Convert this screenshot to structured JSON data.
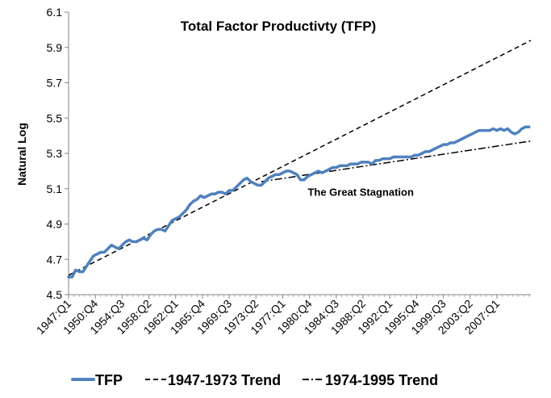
{
  "chart_data": {
    "type": "line",
    "title": "Total Factor Productivty (TFP)",
    "ylabel": "Natural Log",
    "xlabel": "",
    "ylim": [
      4.5,
      6.1
    ],
    "yticks": [
      "4.5",
      "4.7",
      "4.9",
      "5.1",
      "5.3",
      "5.5",
      "5.7",
      "5.9",
      "6.1"
    ],
    "ytick_values": [
      4.5,
      4.7,
      4.9,
      5.1,
      5.3,
      5.5,
      5.7,
      5.9,
      6.1
    ],
    "x_range": [
      1947.0,
      2011.75
    ],
    "xtick_labels": [
      "1947:Q1",
      "1950:Q4",
      "1954:Q3",
      "1958:Q2",
      "1962:Q1",
      "1965:Q4",
      "1969:Q3",
      "1973:Q2",
      "1977:Q1",
      "1980:Q4",
      "1984:Q3",
      "1988:Q2",
      "1992:Q1",
      "1995:Q4",
      "1999:Q3",
      "2003:Q2",
      "2007:Q1"
    ],
    "xtick_values": [
      1947.0,
      1950.75,
      1954.5,
      1958.25,
      1962.0,
      1965.75,
      1969.5,
      1973.25,
      1977.0,
      1980.75,
      1984.5,
      1988.25,
      1992.0,
      1995.75,
      1999.5,
      2003.25,
      2007.0
    ],
    "annotation": {
      "text": "The Great Stagnation",
      "x": 1980.5,
      "y": 5.06
    },
    "series": [
      {
        "name": "TFP",
        "style": "solid",
        "color": "#4F81BD",
        "x": [
          1947.0,
          1947.5,
          1948.0,
          1948.5,
          1949.0,
          1949.5,
          1950.0,
          1950.5,
          1951.0,
          1951.5,
          1952.0,
          1952.5,
          1953.0,
          1953.5,
          1954.0,
          1954.5,
          1955.0,
          1955.5,
          1956.0,
          1956.5,
          1957.0,
          1957.5,
          1958.0,
          1958.5,
          1959.0,
          1959.5,
          1960.0,
          1960.5,
          1961.0,
          1961.5,
          1962.0,
          1962.5,
          1963.0,
          1963.5,
          1964.0,
          1964.5,
          1965.0,
          1965.5,
          1966.0,
          1966.5,
          1967.0,
          1967.5,
          1968.0,
          1968.5,
          1969.0,
          1969.5,
          1970.0,
          1970.5,
          1971.0,
          1971.5,
          1972.0,
          1972.5,
          1973.0,
          1973.5,
          1974.0,
          1974.5,
          1975.0,
          1975.5,
          1976.0,
          1976.5,
          1977.0,
          1977.5,
          1978.0,
          1978.5,
          1979.0,
          1979.5,
          1980.0,
          1980.5,
          1981.0,
          1981.5,
          1982.0,
          1982.5,
          1983.0,
          1983.5,
          1984.0,
          1984.5,
          1985.0,
          1985.5,
          1986.0,
          1986.5,
          1987.0,
          1987.5,
          1988.0,
          1988.5,
          1989.0,
          1989.5,
          1990.0,
          1990.5,
          1991.0,
          1991.5,
          1992.0,
          1992.5,
          1993.0,
          1993.5,
          1994.0,
          1994.5,
          1995.0,
          1995.5,
          1996.0,
          1996.5,
          1997.0,
          1997.5,
          1998.0,
          1998.5,
          1999.0,
          1999.5,
          2000.0,
          2000.5,
          2001.0,
          2001.5,
          2002.0,
          2002.5,
          2003.0,
          2003.5,
          2004.0,
          2004.5,
          2005.0,
          2005.5,
          2006.0,
          2006.5,
          2007.0,
          2007.5,
          2008.0,
          2008.5,
          2009.0,
          2009.5,
          2010.0,
          2010.5,
          2011.0,
          2011.5
        ],
        "y": [
          4.6,
          4.6,
          4.64,
          4.63,
          4.63,
          4.66,
          4.69,
          4.72,
          4.73,
          4.74,
          4.74,
          4.76,
          4.78,
          4.77,
          4.76,
          4.78,
          4.8,
          4.81,
          4.8,
          4.8,
          4.81,
          4.82,
          4.81,
          4.84,
          4.86,
          4.87,
          4.87,
          4.86,
          4.89,
          4.92,
          4.93,
          4.94,
          4.96,
          4.98,
          5.01,
          5.03,
          5.04,
          5.06,
          5.05,
          5.06,
          5.07,
          5.07,
          5.08,
          5.08,
          5.07,
          5.09,
          5.09,
          5.11,
          5.13,
          5.15,
          5.16,
          5.14,
          5.13,
          5.12,
          5.12,
          5.14,
          5.16,
          5.17,
          5.18,
          5.18,
          5.19,
          5.2,
          5.2,
          5.19,
          5.18,
          5.15,
          5.15,
          5.17,
          5.18,
          5.19,
          5.2,
          5.19,
          5.2,
          5.21,
          5.22,
          5.22,
          5.23,
          5.23,
          5.23,
          5.24,
          5.24,
          5.24,
          5.25,
          5.25,
          5.25,
          5.24,
          5.26,
          5.26,
          5.27,
          5.27,
          5.27,
          5.28,
          5.28,
          5.28,
          5.28,
          5.28,
          5.28,
          5.29,
          5.29,
          5.3,
          5.31,
          5.31,
          5.32,
          5.33,
          5.34,
          5.35,
          5.35,
          5.36,
          5.36,
          5.37,
          5.38,
          5.39,
          5.4,
          5.41,
          5.42,
          5.43,
          5.43,
          5.43,
          5.43,
          5.44,
          5.43,
          5.44,
          5.43,
          5.44,
          5.42,
          5.41,
          5.42,
          5.44,
          5.45,
          5.45
        ]
      },
      {
        "name": "1947-1973 Trend",
        "style": "dashed",
        "color": "#000000",
        "x": [
          1947.0,
          2011.75
        ],
        "y": [
          4.61,
          5.94
        ]
      },
      {
        "name": "1974-1995 Trend",
        "style": "dashdot",
        "color": "#000000",
        "x": [
          1974.0,
          2011.75
        ],
        "y": [
          5.14,
          5.37
        ]
      }
    ],
    "legend": {
      "position": "bottom"
    }
  }
}
